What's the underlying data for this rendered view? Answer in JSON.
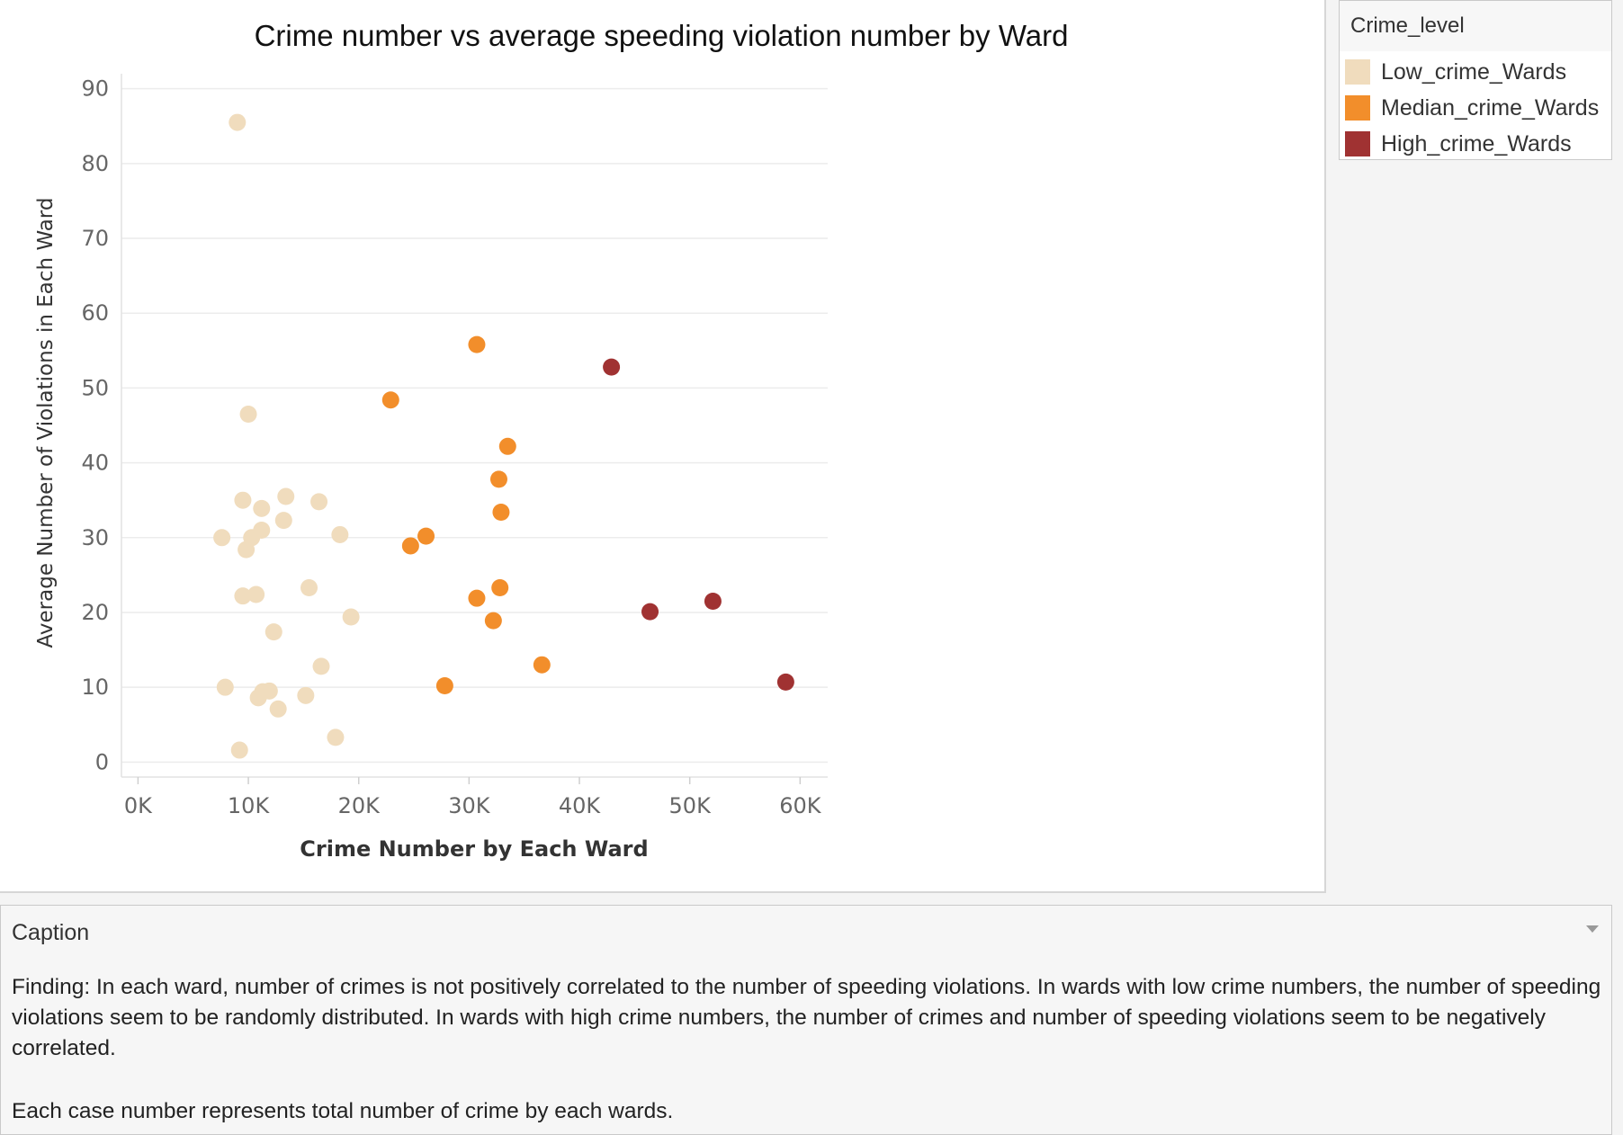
{
  "chart_data": {
    "type": "scatter",
    "title": "Crime number vs average speeding violation number by Ward",
    "xlabel": "Crime Number by Each Ward",
    "ylabel": "Average Number of  Violations in Each Ward",
    "xlim": [
      -1500,
      62500
    ],
    "ylim": [
      -2,
      92
    ],
    "x_ticks": [
      {
        "value": 0,
        "label": "0K"
      },
      {
        "value": 10000,
        "label": "10K"
      },
      {
        "value": 20000,
        "label": "20K"
      },
      {
        "value": 30000,
        "label": "30K"
      },
      {
        "value": 40000,
        "label": "40K"
      },
      {
        "value": 50000,
        "label": "50K"
      },
      {
        "value": 60000,
        "label": "60K"
      }
    ],
    "y_ticks": [
      {
        "value": 0,
        "label": "0"
      },
      {
        "value": 10,
        "label": "10"
      },
      {
        "value": 20,
        "label": "20"
      },
      {
        "value": 30,
        "label": "30"
      },
      {
        "value": 40,
        "label": "40"
      },
      {
        "value": 50,
        "label": "50"
      },
      {
        "value": 60,
        "label": "60"
      },
      {
        "value": 70,
        "label": "70"
      },
      {
        "value": 80,
        "label": "80"
      },
      {
        "value": 90,
        "label": "90"
      }
    ],
    "grid": true,
    "legend_position": "top-right",
    "series": [
      {
        "name": "Low_crime_Wards",
        "color": "#f0dcbd",
        "points": [
          {
            "x": 9000,
            "y": 85.5
          },
          {
            "x": 10000,
            "y": 46.5
          },
          {
            "x": 9500,
            "y": 35.0
          },
          {
            "x": 13400,
            "y": 35.5
          },
          {
            "x": 16400,
            "y": 34.8
          },
          {
            "x": 11200,
            "y": 33.9
          },
          {
            "x": 13200,
            "y": 32.3
          },
          {
            "x": 7600,
            "y": 30.0
          },
          {
            "x": 10300,
            "y": 30.0
          },
          {
            "x": 11200,
            "y": 31.0
          },
          {
            "x": 18300,
            "y": 30.4
          },
          {
            "x": 9800,
            "y": 28.4
          },
          {
            "x": 15500,
            "y": 23.3
          },
          {
            "x": 10700,
            "y": 22.4
          },
          {
            "x": 9500,
            "y": 22.2
          },
          {
            "x": 19300,
            "y": 19.4
          },
          {
            "x": 12300,
            "y": 17.4
          },
          {
            "x": 16600,
            "y": 12.8
          },
          {
            "x": 7900,
            "y": 10.0
          },
          {
            "x": 11300,
            "y": 9.4
          },
          {
            "x": 11900,
            "y": 9.5
          },
          {
            "x": 10900,
            "y": 8.6
          },
          {
            "x": 15200,
            "y": 8.9
          },
          {
            "x": 12700,
            "y": 7.1
          },
          {
            "x": 17900,
            "y": 3.3
          },
          {
            "x": 9200,
            "y": 1.6
          }
        ]
      },
      {
        "name": "Median_crime_Wards",
        "color": "#f28e2b",
        "points": [
          {
            "x": 30700,
            "y": 55.8
          },
          {
            "x": 22900,
            "y": 48.4
          },
          {
            "x": 33500,
            "y": 42.2
          },
          {
            "x": 32700,
            "y": 37.8
          },
          {
            "x": 32900,
            "y": 33.4
          },
          {
            "x": 26100,
            "y": 30.2
          },
          {
            "x": 24700,
            "y": 28.9
          },
          {
            "x": 32800,
            "y": 23.3
          },
          {
            "x": 30700,
            "y": 21.9
          },
          {
            "x": 32200,
            "y": 18.9
          },
          {
            "x": 36600,
            "y": 13.0
          },
          {
            "x": 27800,
            "y": 10.2
          }
        ]
      },
      {
        "name": "High_crime_Wards",
        "color": "#a03232",
        "points": [
          {
            "x": 42900,
            "y": 52.8
          },
          {
            "x": 46400,
            "y": 20.1
          },
          {
            "x": 52100,
            "y": 21.5
          },
          {
            "x": 58700,
            "y": 10.7
          }
        ]
      }
    ]
  },
  "legend": {
    "title": "Crime_level",
    "items": [
      {
        "label": "Low_crime_Wards",
        "color": "#f0dcbd"
      },
      {
        "label": "Median_crime_Wards",
        "color": "#f28e2b"
      },
      {
        "label": "High_crime_Wards",
        "color": "#a03232"
      }
    ]
  },
  "caption": {
    "title": "Caption",
    "finding": "Finding: In each ward, number of crimes is not positively correlated to the number of speeding violations. In wards with low crime numbers, the number of speeding violations seem to be randomly distributed. In wards with high crime numbers, the number of crimes and number of speeding violations seem to be negatively correlated.",
    "note": "Each case number represents total number of crime by each wards."
  }
}
